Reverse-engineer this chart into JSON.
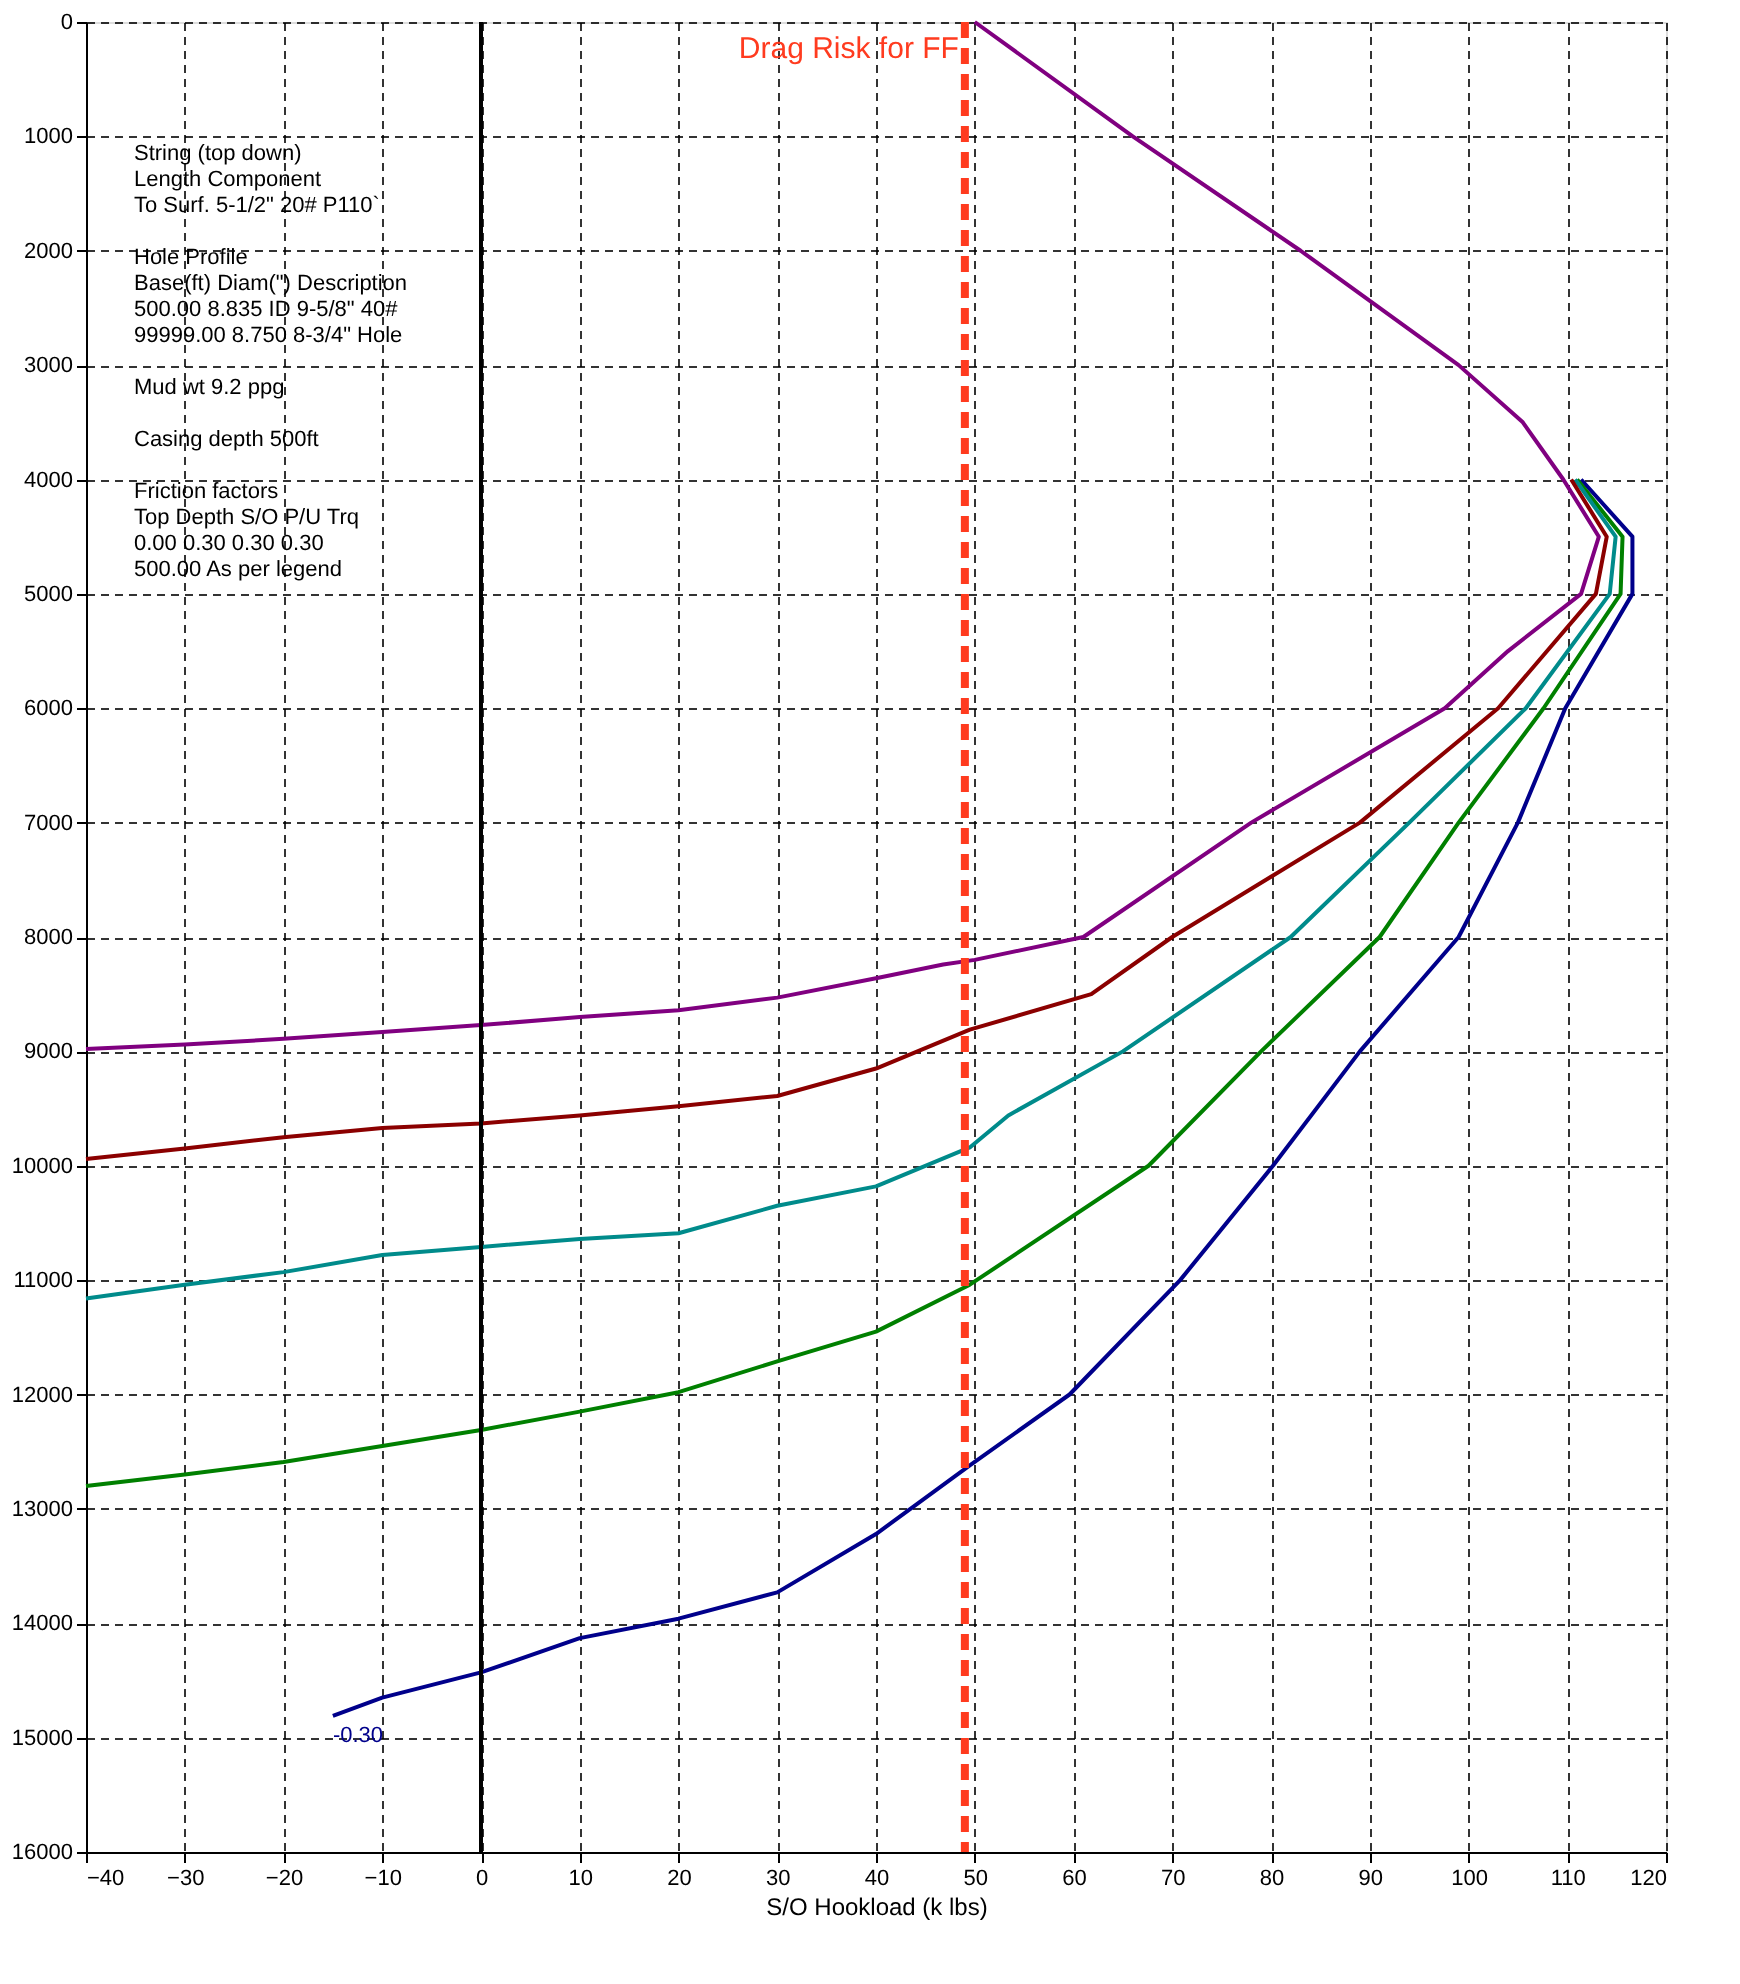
{
  "chart_data": {
    "type": "line",
    "xlabel": "S/O Hookload (k lbs)",
    "xlim": [
      -40,
      120
    ],
    "xticks": [
      -40,
      -30,
      -20,
      -10,
      0,
      10,
      20,
      30,
      40,
      50,
      60,
      70,
      80,
      90,
      100,
      110,
      120
    ],
    "ylim": [
      16000,
      0
    ],
    "yticks": [
      0,
      1000,
      2000,
      3000,
      4000,
      5000,
      6000,
      7000,
      8000,
      9000,
      10000,
      11000,
      12000,
      13000,
      14000,
      15000,
      16000
    ],
    "grid": true,
    "marker": "none",
    "line_style": "solid",
    "series": [
      {
        "color": "#800080",
        "x": [
          50,
          66,
          83,
          99,
          105.5,
          109.6,
          113.2,
          111.4,
          104,
          97.6,
          78,
          61,
          50,
          46.8,
          40,
          30,
          20,
          10,
          0,
          -10,
          -20,
          -30,
          -40
        ],
        "values": [
          0,
          1000,
          2000,
          3000,
          3500,
          4000,
          4500,
          5000,
          5500,
          6000,
          7000,
          8000,
          8200,
          8240,
          8360,
          8530,
          8640,
          8700,
          8770,
          8830,
          8890,
          8940,
          8980
        ]
      },
      {
        "color": "#8b0000",
        "x": [
          110.4,
          114,
          112.9,
          103,
          89,
          70,
          61.8,
          49.5,
          40,
          30,
          20,
          10,
          0,
          -10,
          -20,
          -30,
          -40
        ],
        "values": [
          4000,
          4500,
          5000,
          6000,
          7000,
          8000,
          8500,
          8810,
          9150,
          9390,
          9480,
          9560,
          9630,
          9670,
          9750,
          9850,
          9940
        ]
      },
      {
        "color": "#008b8b",
        "x": [
          110.8,
          114.9,
          114.3,
          105.8,
          94,
          82,
          65,
          53.4,
          49.5,
          40,
          30,
          20,
          10,
          0,
          -10,
          -20,
          -30,
          -40
        ],
        "values": [
          4000,
          4500,
          5000,
          6000,
          7000,
          8000,
          9000,
          9560,
          9840,
          10180,
          10350,
          10590,
          10640,
          10710,
          10780,
          10930,
          11040,
          11160
        ]
      },
      {
        "color": "#008000",
        "x": [
          111,
          115.6,
          115.4,
          107.6,
          99,
          91,
          79,
          67.6,
          49.5,
          40,
          30,
          20,
          10,
          0,
          -10,
          -20,
          -30,
          -40
        ],
        "values": [
          4000,
          4500,
          5000,
          6000,
          7000,
          8000,
          9000,
          10000,
          11040,
          11450,
          11710,
          11980,
          12150,
          12310,
          12450,
          12590,
          12700,
          12800
        ]
      },
      {
        "color": "#00008b",
        "x": [
          111.4,
          116.6,
          116.6,
          109.8,
          105,
          99,
          89,
          80.2,
          70.8,
          59.6,
          49.5,
          40,
          30,
          20,
          10,
          0,
          -10,
          -15
        ],
        "values": [
          4000,
          4500,
          5000,
          6000,
          7000,
          8000,
          9000,
          10000,
          11000,
          12000,
          12620,
          13220,
          13730,
          13960,
          14130,
          14430,
          14650,
          14810
        ]
      }
    ],
    "ref_lines": [
      {
        "axis": "x",
        "value": 0,
        "color": "#000000",
        "line_style": "solid"
      },
      {
        "axis": "x",
        "value": 49,
        "label": "Drag Risk for FF",
        "color": "#ff3b1f",
        "line_style": "dashed"
      }
    ],
    "annotations": [
      "String (top down)\n  Length   Component\n  To Surf.  5-1/2\" 20# P110`",
      "Hole Profile\n   Base(ft) Diam(\") Description\n    500.00      8.835  ID 9-5/8\" 40#\n99999.00      8.750  8-3/4\" Hole",
      "Mud wt    9.2 ppg",
      "Casing depth   500ft",
      "Friction factors\n  Top Depth  S/O   P/U   Trq\n        0.00  0.30  0.30  0.30\n    500.00  As per legend",
      {
        "text": "-0.30",
        "x": -15,
        "y": 14810
      }
    ]
  }
}
